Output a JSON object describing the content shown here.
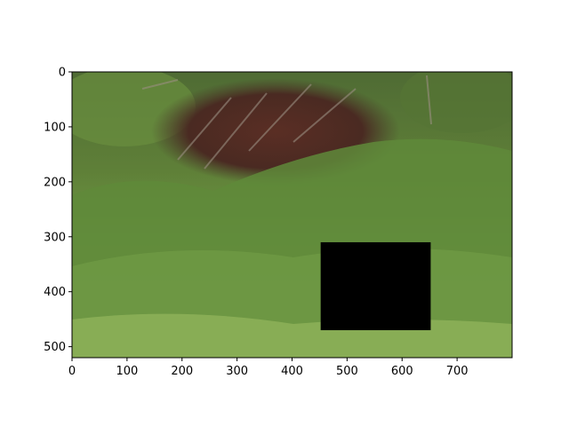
{
  "image": {
    "description_hidden": "",
    "extent_x": [
      0,
      800
    ],
    "extent_y": [
      520,
      0
    ],
    "masked_region": {
      "x0": 452,
      "x1": 652,
      "y0": 310,
      "y1": 470,
      "color": "#000000"
    }
  },
  "axes": {
    "x_ticks": [
      0,
      100,
      200,
      300,
      400,
      500,
      600,
      700
    ],
    "y_ticks": [
      0,
      100,
      200,
      300,
      400,
      500
    ]
  },
  "colors": {
    "sky_foliage": "#5e7a3a",
    "dark_mound": "#4a2a22",
    "grass_mid": "#6f9a45",
    "grass_light": "#8fb35a",
    "grass_dark": "#3f5f2a",
    "mask": "#000000"
  }
}
